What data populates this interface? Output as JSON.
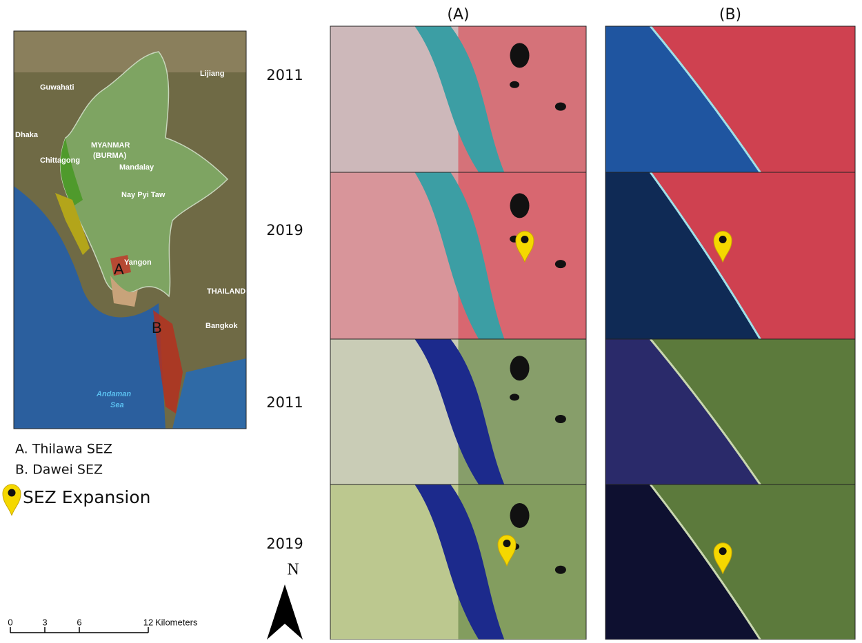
{
  "columns": [
    "(A)",
    "(B)"
  ],
  "rows": [
    "2011",
    "2019",
    "2011",
    "2019"
  ],
  "map": {
    "labels": [
      "Lijiang",
      "Guwahati",
      "Dhaka",
      "MYANMAR",
      "(BURMA)",
      "Mandalay",
      "Chittagong",
      "Nay Pyi Taw",
      "Yangon",
      "THAILAND",
      "Bangkok",
      "Andaman",
      "Sea",
      "A",
      "B"
    ]
  },
  "legend": {
    "items": [
      "A. Thilawa SEZ",
      "B. Dawei SEZ"
    ],
    "pin_label": "SEZ Expansion"
  },
  "north": "N",
  "scale_bar": {
    "ticks": [
      0,
      3,
      6,
      12
    ],
    "unit": "Kilometers"
  }
}
